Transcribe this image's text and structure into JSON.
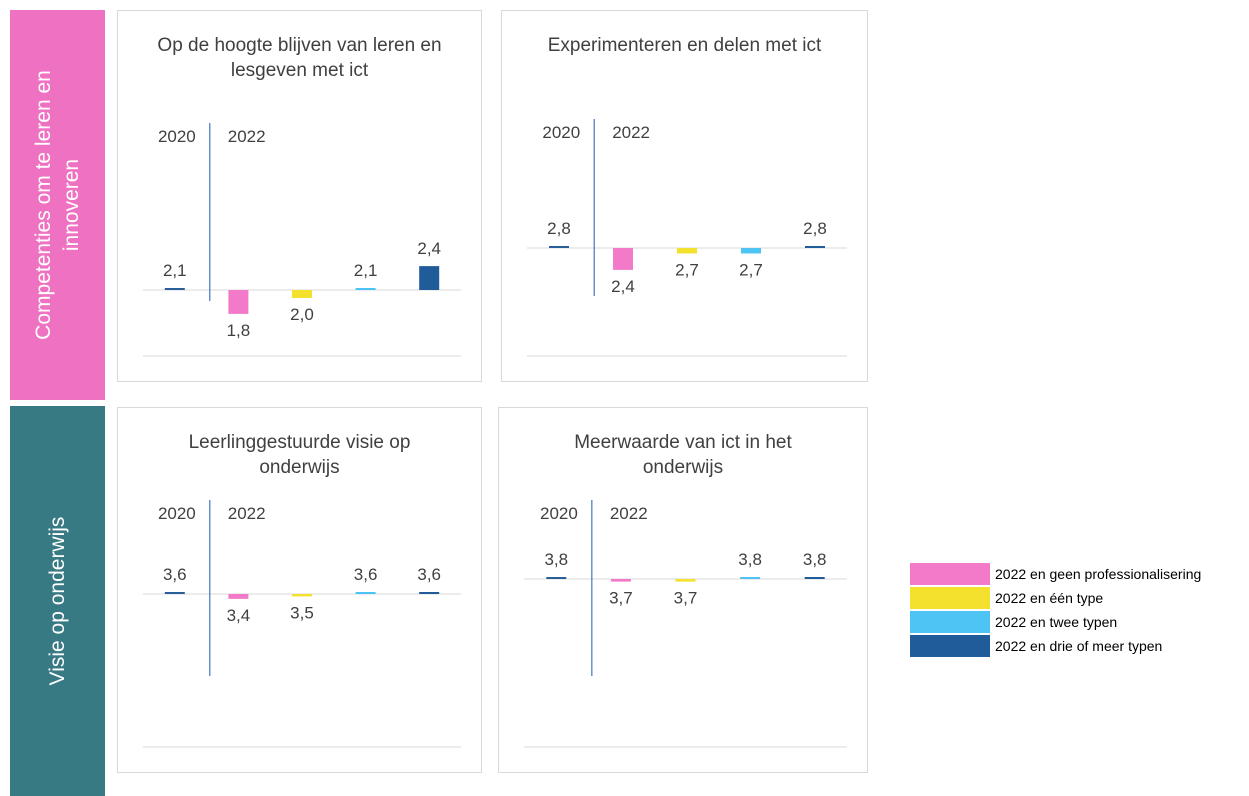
{
  "rows": [
    {
      "label": "Competenties om te leren en innoveren",
      "color": "#ee72c1"
    },
    {
      "label": "Visie op onderwijs",
      "color": "#377a84"
    }
  ],
  "bar_colors": [
    "#2a5e9a",
    "#f27ac9",
    "#f3e12d",
    "#4dc4f4",
    "#1f5c99"
  ],
  "legend": [
    "2022 en geen professionalisering",
    "2022 en één type",
    "2022 en twee typen",
    "2022 en drie of meer typen"
  ],
  "chart_data": [
    {
      "type": "bar",
      "title": "Op de hoogte blijven van leren en lesgeven met ict",
      "group_labels": [
        "2020",
        "2022"
      ],
      "values": [
        2.1,
        1.8,
        2.0,
        2.1,
        2.4
      ],
      "value_labels": [
        "2,1",
        "1,8",
        "2,0",
        "2,1",
        "2,4"
      ],
      "ylim": [
        0,
        3
      ]
    },
    {
      "type": "bar",
      "title": "Experimenteren en delen met ict",
      "group_labels": [
        "2020",
        "2022"
      ],
      "values": [
        2.8,
        2.4,
        2.7,
        2.7,
        2.8
      ],
      "value_labels": [
        "2,8",
        "2,4",
        "2,7",
        "2,7",
        "2,8"
      ],
      "ylim": [
        0,
        3.6
      ]
    },
    {
      "type": "bar",
      "title": "Leerlinggestuurde visie op onderwijs",
      "group_labels": [
        "2020",
        "2022"
      ],
      "values": [
        3.6,
        3.4,
        3.5,
        3.6,
        3.6
      ],
      "value_labels": [
        "3,6",
        "3,4",
        "3,5",
        "3,6",
        "3,6"
      ],
      "ylim": [
        0,
        6
      ]
    },
    {
      "type": "bar",
      "title": "Meerwaarde van ict in het onderwijs",
      "group_labels": [
        "2020",
        "2022"
      ],
      "values": [
        3.8,
        3.7,
        3.7,
        3.8,
        3.8
      ],
      "value_labels": [
        "3,8",
        "3,7",
        "3,7",
        "3,8",
        "3,8"
      ],
      "ylim": [
        0,
        5
      ]
    }
  ]
}
